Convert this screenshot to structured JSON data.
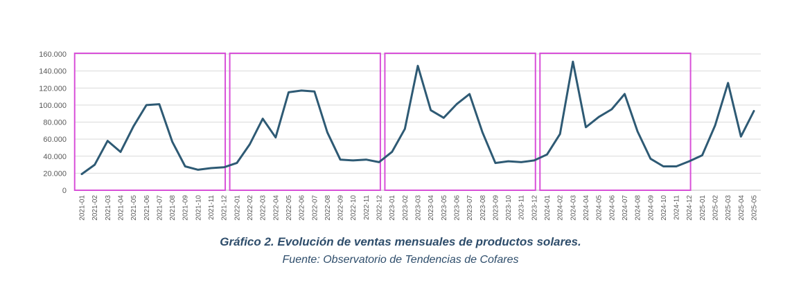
{
  "chart_data": {
    "type": "line",
    "title": "",
    "xlabel": "",
    "ylabel": "",
    "ylim": [
      0,
      160000
    ],
    "y_ticks": [
      "0",
      "20.000",
      "40.000",
      "60.000",
      "80.000",
      "100.000",
      "120.000",
      "140.000",
      "160.000"
    ],
    "grid": "horizontal",
    "line_color": "#2e5a74",
    "highlight_color": "#d84fd8",
    "categories": [
      "2021-01",
      "2021-02",
      "2021-03",
      "2021-04",
      "2021-05",
      "2021-06",
      "2021-07",
      "2021-08",
      "2021-09",
      "2021-10",
      "2021-11",
      "2021-12",
      "2022-01",
      "2022-02",
      "2022-03",
      "2022-04",
      "2022-05",
      "2022-06",
      "2022-07",
      "2022-08",
      "2022-09",
      "2022-10",
      "2022-11",
      "2022-12",
      "2023-01",
      "2023-02",
      "2023-03",
      "2023-04",
      "2023-05",
      "2023-06",
      "2023-07",
      "2023-08",
      "2023-09",
      "2023-10",
      "2023-11",
      "2023-12",
      "2024-01",
      "2024-02",
      "2024-03",
      "2024-04",
      "2024-05",
      "2024-06",
      "2024-07",
      "2024-08",
      "2024-09",
      "2024-10",
      "2024-11",
      "2024-12",
      "2025-01",
      "2025-02",
      "2025-03",
      "2025-04",
      "2025-05"
    ],
    "values": [
      19000,
      30000,
      58000,
      45000,
      75000,
      100000,
      101000,
      57000,
      28000,
      24000,
      26000,
      27000,
      32000,
      54000,
      84000,
      62000,
      115000,
      117000,
      116000,
      68000,
      36000,
      35000,
      36000,
      33000,
      45000,
      72000,
      146000,
      94000,
      85000,
      101000,
      113000,
      68000,
      32000,
      34000,
      33000,
      35000,
      42000,
      66000,
      151000,
      74000,
      86000,
      95000,
      113000,
      69000,
      37000,
      28000,
      28000,
      34000,
      41000,
      76000,
      126000,
      63000,
      93000
    ],
    "highlight_periods": [
      "2021",
      "2022",
      "2023",
      "2024"
    ]
  },
  "caption": {
    "title": "Gráfico 2. Evolución de ventas mensuales de productos solares.",
    "source": "Fuente: Observatorio de Tendencias de Cofares"
  }
}
